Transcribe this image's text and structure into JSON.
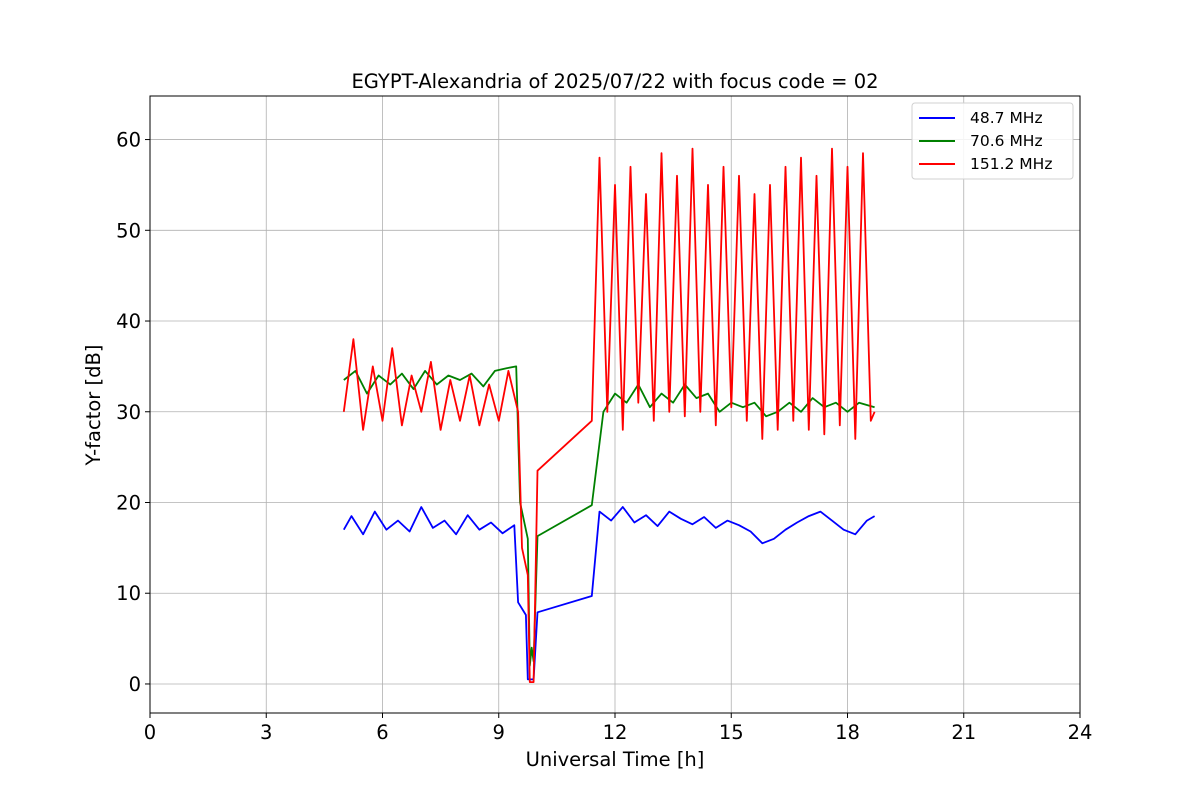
{
  "chart_data": {
    "type": "line",
    "title": "EGYPT-Alexandria of 2025/07/22 with focus code = 02",
    "xlabel": "Universal Time [h]",
    "ylabel": "Y-factor [dB]",
    "xlim": [
      0,
      24
    ],
    "ylim": [
      -3.2,
      64.8
    ],
    "xticks": [
      0,
      3,
      6,
      9,
      12,
      15,
      18,
      21,
      24
    ],
    "yticks": [
      0,
      10,
      20,
      30,
      40,
      50,
      60
    ],
    "grid": true,
    "legend_position": "top-right",
    "series": [
      {
        "name": "48.7 MHz",
        "color": "#0000ff",
        "x": [
          5.0,
          5.2,
          5.5,
          5.8,
          6.1,
          6.4,
          6.7,
          7.0,
          7.3,
          7.6,
          7.9,
          8.2,
          8.5,
          8.8,
          9.1,
          9.4,
          9.5,
          9.7,
          9.75,
          9.8,
          9.85,
          9.9,
          10.0,
          11.4,
          11.6,
          11.9,
          12.2,
          12.5,
          12.8,
          13.1,
          13.4,
          13.7,
          14.0,
          14.3,
          14.6,
          14.9,
          15.2,
          15.5,
          15.8,
          16.1,
          16.4,
          16.7,
          17.0,
          17.3,
          17.6,
          17.9,
          18.2,
          18.5,
          18.7
        ],
        "y": [
          17.0,
          18.5,
          16.5,
          19.0,
          17.0,
          18.0,
          16.8,
          19.5,
          17.2,
          18.0,
          16.5,
          18.6,
          17.0,
          17.8,
          16.6,
          17.5,
          9.0,
          7.6,
          0.5,
          0.5,
          0.5,
          0.5,
          7.9,
          9.7,
          19.0,
          18.0,
          19.5,
          17.8,
          18.6,
          17.4,
          19.0,
          18.2,
          17.6,
          18.4,
          17.2,
          18.0,
          17.5,
          16.8,
          15.5,
          16.0,
          17.0,
          17.8,
          18.5,
          19.0,
          18.0,
          17.0,
          16.5,
          18.0,
          18.5
        ]
      },
      {
        "name": "70.6 MHz",
        "color": "#008000",
        "x": [
          5.0,
          5.3,
          5.6,
          5.9,
          6.2,
          6.5,
          6.8,
          7.1,
          7.4,
          7.7,
          8.0,
          8.3,
          8.6,
          8.9,
          9.2,
          9.45,
          9.55,
          9.75,
          9.8,
          9.85,
          9.9,
          10.0,
          11.4,
          11.7,
          12.0,
          12.3,
          12.6,
          12.9,
          13.2,
          13.5,
          13.8,
          14.1,
          14.4,
          14.7,
          15.0,
          15.3,
          15.6,
          15.9,
          16.2,
          16.5,
          16.8,
          17.1,
          17.4,
          17.7,
          18.0,
          18.3,
          18.7
        ],
        "y": [
          33.5,
          34.5,
          32.0,
          34.0,
          33.0,
          34.2,
          32.5,
          34.5,
          33.0,
          34.0,
          33.5,
          34.2,
          32.8,
          34.5,
          34.8,
          35.0,
          20.0,
          16.0,
          2.0,
          4.0,
          2.5,
          16.3,
          19.7,
          30.0,
          32.0,
          31.0,
          33.0,
          30.5,
          32.0,
          31.0,
          33.0,
          31.5,
          32.0,
          30.0,
          31.0,
          30.5,
          31.0,
          29.5,
          30.0,
          31.0,
          30.0,
          31.5,
          30.5,
          31.0,
          30.0,
          31.0,
          30.5
        ]
      },
      {
        "name": "151.2 MHz",
        "color": "#ff0000",
        "x": [
          5.0,
          5.25,
          5.5,
          5.75,
          6.0,
          6.25,
          6.5,
          6.75,
          7.0,
          7.25,
          7.5,
          7.75,
          8.0,
          8.25,
          8.5,
          8.75,
          9.0,
          9.25,
          9.5,
          9.6,
          9.75,
          9.8,
          9.85,
          9.9,
          10.0,
          11.4,
          11.6,
          11.8,
          12.0,
          12.2,
          12.4,
          12.6,
          12.8,
          13.0,
          13.2,
          13.4,
          13.6,
          13.8,
          14.0,
          14.2,
          14.4,
          14.6,
          14.8,
          15.0,
          15.2,
          15.4,
          15.6,
          15.8,
          16.0,
          16.2,
          16.4,
          16.6,
          16.8,
          17.0,
          17.2,
          17.4,
          17.6,
          17.8,
          18.0,
          18.2,
          18.4,
          18.6,
          18.7
        ],
        "y": [
          30.0,
          38.0,
          28.0,
          35.0,
          29.0,
          37.0,
          28.5,
          34.0,
          30.0,
          35.5,
          28.0,
          33.5,
          29.0,
          34.0,
          28.5,
          33.0,
          29.0,
          34.5,
          30.0,
          15.0,
          12.0,
          0.2,
          0.2,
          0.2,
          23.5,
          29.0,
          58.0,
          30.0,
          55.0,
          28.0,
          57.0,
          31.0,
          54.0,
          29.0,
          58.5,
          30.0,
          56.0,
          29.5,
          59.0,
          30.0,
          55.0,
          28.5,
          57.0,
          30.5,
          56.0,
          29.0,
          54.0,
          27.0,
          55.0,
          28.0,
          57.0,
          29.0,
          58.0,
          28.0,
          56.0,
          27.5,
          59.0,
          28.5,
          57.0,
          27.0,
          58.5,
          29.0,
          30.0
        ]
      }
    ]
  }
}
